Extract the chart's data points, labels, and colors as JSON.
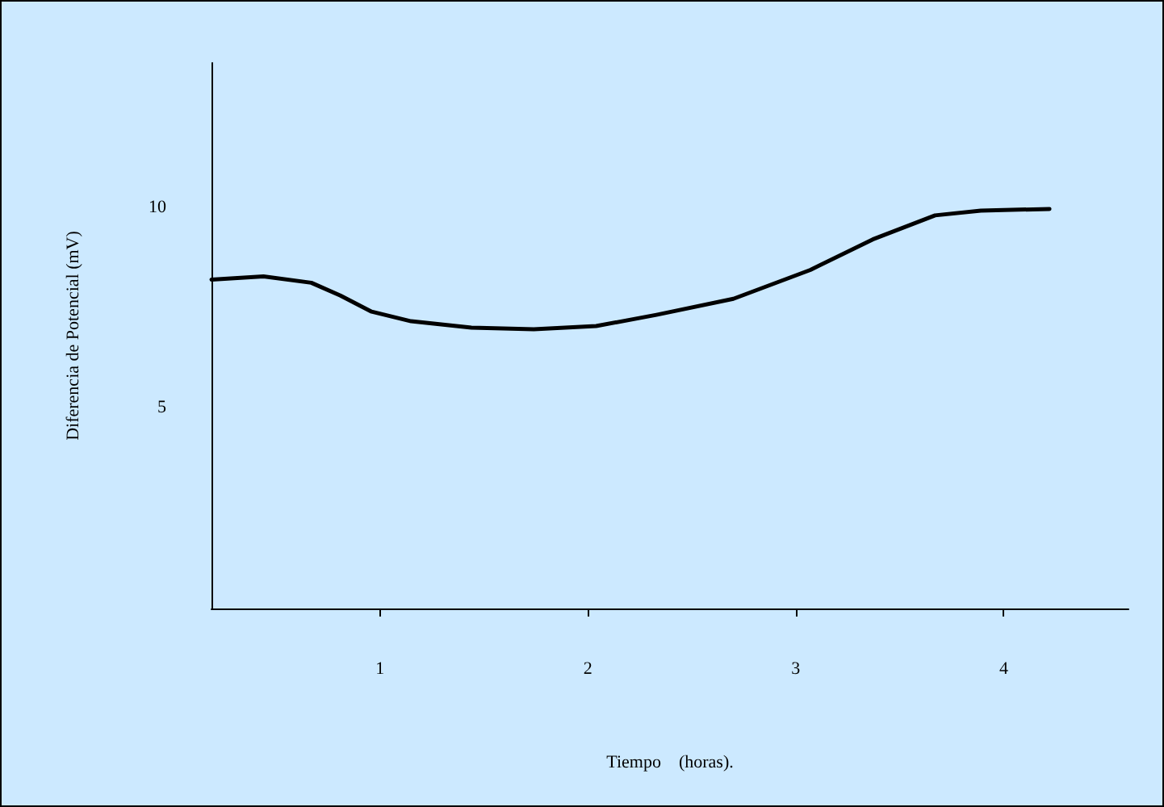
{
  "chart_data": {
    "type": "line",
    "xlabel": "Tiempo    (horas).",
    "ylabel": "Diferencia de Potencial (mV)",
    "x": [
      0.19,
      0.44,
      0.67,
      0.81,
      0.96,
      1.15,
      1.44,
      1.74,
      2.04,
      2.33,
      2.7,
      3.07,
      3.37,
      3.67,
      3.89,
      4.22
    ],
    "series": [
      {
        "color": "#000000",
        "values": [
          8.2,
          8.28,
          8.12,
          7.8,
          7.4,
          7.16,
          7.0,
          6.96,
          7.04,
          7.32,
          7.72,
          8.44,
          9.2,
          9.8,
          9.92,
          9.96
        ]
      }
    ],
    "xlim": [
      0.19,
      4.6
    ],
    "xticks": [
      1,
      2,
      3,
      4
    ],
    "ylim": [
      0,
      13.6
    ],
    "yticks": [
      5,
      10
    ],
    "grid": false,
    "marker": "none",
    "line_style": "solid"
  }
}
